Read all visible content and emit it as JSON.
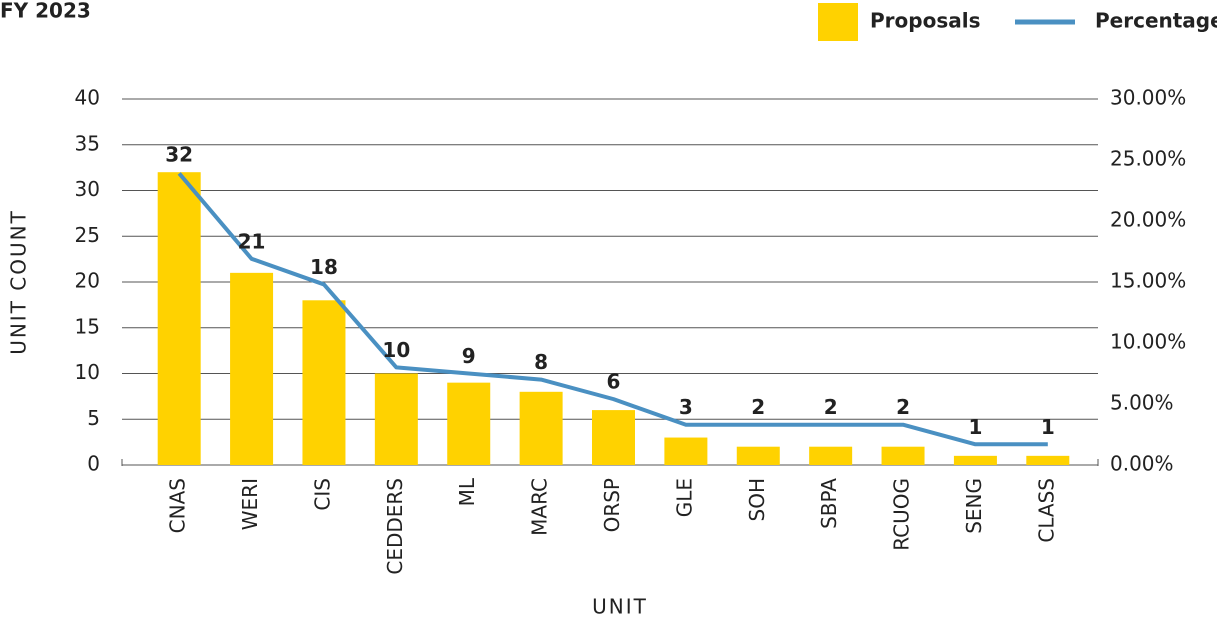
{
  "chart_data": {
    "type": "bar_line",
    "title": "FY 2023",
    "x_label": "UNIT",
    "y_label": "UNIT COUNT",
    "categories": [
      "CNAS",
      "WERI",
      "CIS",
      "CEDDERS",
      "ML",
      "MARC",
      "ORSP",
      "GLE",
      "SOH",
      "SBPA",
      "RCUOG",
      "SENG",
      "CLASS"
    ],
    "series": [
      {
        "name": "Proposals",
        "color": "#FFD200",
        "kind": "bar",
        "values": [
          32,
          21,
          18,
          10,
          9,
          8,
          6,
          3,
          2,
          2,
          2,
          1,
          1
        ]
      },
      {
        "name": "Percentage",
        "color": "#4A90C2",
        "kind": "line",
        "axis": "y2",
        "values": [
          23.9,
          16.9,
          14.8,
          8.0,
          7.5,
          7.0,
          5.4,
          3.3,
          3.3,
          3.3,
          3.3,
          1.7,
          1.7
        ]
      }
    ],
    "ylim": [
      0,
      40
    ],
    "yticks": [
      0,
      5,
      10,
      15,
      20,
      25,
      30,
      35,
      40
    ],
    "y2lim": [
      0,
      30
    ],
    "y2ticks": [
      {
        "value": 0,
        "label": "0.00%"
      },
      {
        "value": 5,
        "label": "5.00%"
      },
      {
        "value": 10,
        "label": "10.00%"
      },
      {
        "value": 15,
        "label": "15.00%"
      },
      {
        "value": 20,
        "label": "20.00%"
      },
      {
        "value": 25,
        "label": "25.00%"
      },
      {
        "value": 30,
        "label": "30.00%"
      }
    ],
    "grid": true
  }
}
